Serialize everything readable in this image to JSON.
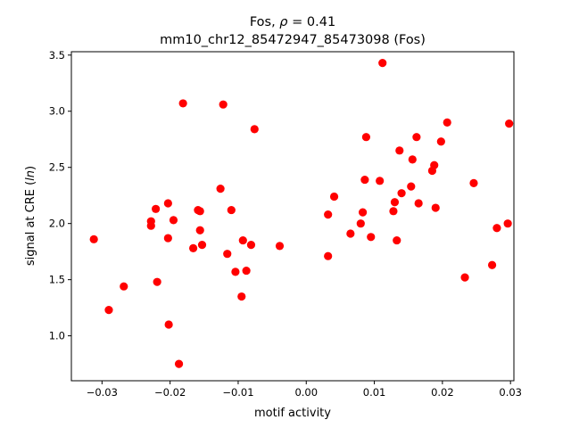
{
  "chart_data": {
    "type": "scatter",
    "title_line1_prefix": "Fos, ",
    "title_rho_symbol": "ρ",
    "title_rho_value": " = 0.41",
    "title_line2": "mm10_chr12_85472947_85473098 (Fos)",
    "xlabel": "motif activity",
    "ylabel_prefix": "signal at CRE (",
    "ylabel_italic": "ln",
    "ylabel_suffix": ")",
    "xlim": [
      -0.0345,
      0.0305
    ],
    "ylim": [
      0.6,
      3.53
    ],
    "xticks": [
      -0.03,
      -0.02,
      -0.01,
      0.0,
      0.01,
      0.02,
      0.03
    ],
    "xtick_labels": [
      "−0.03",
      "−0.02",
      "−0.01",
      "0.00",
      "0.01",
      "0.02",
      "0.03"
    ],
    "yticks": [
      1.0,
      1.5,
      2.0,
      2.5,
      3.0,
      3.5
    ],
    "ytick_labels": [
      "1.0",
      "1.5",
      "2.0",
      "2.5",
      "3.0",
      "3.5"
    ],
    "grid": false,
    "marker_color": "#ff0000",
    "points": [
      [
        -0.0312,
        1.86
      ],
      [
        -0.029,
        1.23
      ],
      [
        -0.0268,
        1.44
      ],
      [
        -0.0228,
        2.02
      ],
      [
        -0.0228,
        1.98
      ],
      [
        -0.0221,
        2.13
      ],
      [
        -0.0219,
        1.48
      ],
      [
        -0.0203,
        2.18
      ],
      [
        -0.0203,
        1.87
      ],
      [
        -0.0202,
        1.1
      ],
      [
        -0.0195,
        2.03
      ],
      [
        -0.0187,
        0.75
      ],
      [
        -0.0181,
        3.07
      ],
      [
        -0.0166,
        1.78
      ],
      [
        -0.0159,
        2.12
      ],
      [
        -0.0156,
        2.11
      ],
      [
        -0.0156,
        1.94
      ],
      [
        -0.0153,
        1.81
      ],
      [
        -0.0126,
        2.31
      ],
      [
        -0.0122,
        3.06
      ],
      [
        -0.0116,
        1.73
      ],
      [
        -0.011,
        2.12
      ],
      [
        -0.0104,
        1.57
      ],
      [
        -0.0095,
        1.35
      ],
      [
        -0.0093,
        1.85
      ],
      [
        -0.0088,
        1.58
      ],
      [
        -0.0081,
        1.81
      ],
      [
        -0.0076,
        2.84
      ],
      [
        -0.0039,
        1.8
      ],
      [
        0.0032,
        1.71
      ],
      [
        0.0032,
        2.08
      ],
      [
        0.0041,
        2.24
      ],
      [
        0.0065,
        1.91
      ],
      [
        0.008,
        2.0
      ],
      [
        0.0083,
        2.1
      ],
      [
        0.0086,
        2.39
      ],
      [
        0.0088,
        2.77
      ],
      [
        0.0095,
        1.88
      ],
      [
        0.0108,
        2.38
      ],
      [
        0.0112,
        3.43
      ],
      [
        0.0128,
        2.11
      ],
      [
        0.013,
        2.19
      ],
      [
        0.0133,
        1.85
      ],
      [
        0.0137,
        2.65
      ],
      [
        0.014,
        2.27
      ],
      [
        0.0154,
        2.33
      ],
      [
        0.0156,
        2.57
      ],
      [
        0.0162,
        2.77
      ],
      [
        0.0165,
        2.18
      ],
      [
        0.0185,
        2.47
      ],
      [
        0.0188,
        2.52
      ],
      [
        0.019,
        2.14
      ],
      [
        0.0198,
        2.73
      ],
      [
        0.0207,
        2.9
      ],
      [
        0.0233,
        1.52
      ],
      [
        0.0246,
        2.36
      ],
      [
        0.0273,
        1.63
      ],
      [
        0.028,
        1.96
      ],
      [
        0.0296,
        2.0
      ],
      [
        0.0298,
        2.89
      ]
    ]
  }
}
